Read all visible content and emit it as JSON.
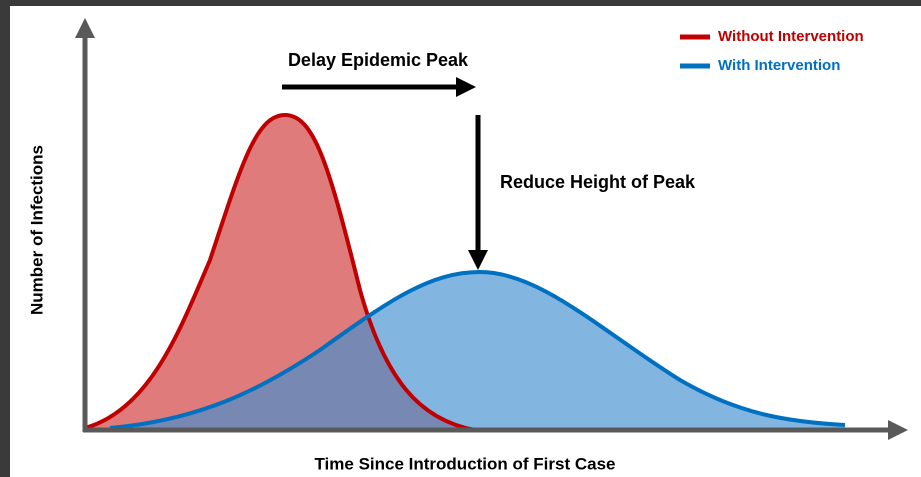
{
  "axes": {
    "x_label": "Time Since Introduction of First Case",
    "y_label": "Number of Infections"
  },
  "annotations": {
    "delay": "Delay Epidemic Peak",
    "reduce": "Reduce Height of Peak"
  },
  "legend": [
    {
      "label": "Without Intervention"
    },
    {
      "label": "With Intervention"
    }
  ]
}
